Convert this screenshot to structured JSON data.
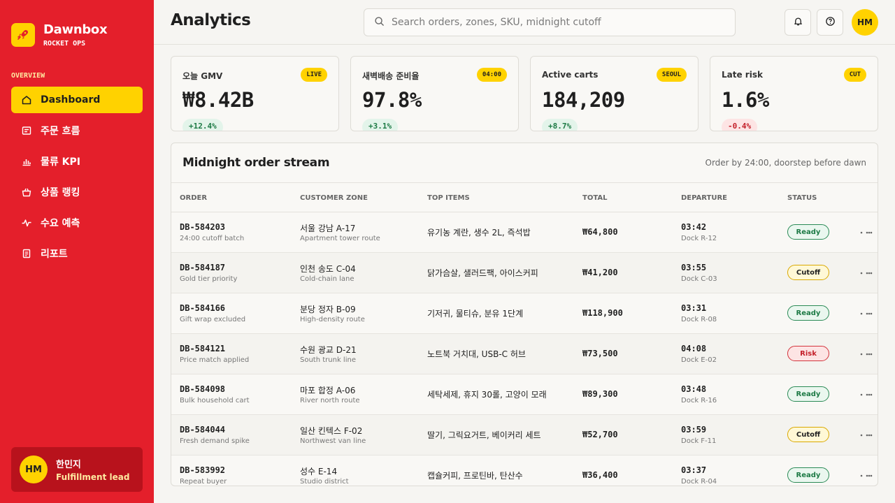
{
  "brand": {
    "name": "Dawnbox",
    "subtitle": "ROCKET OPS",
    "accent": "#e41f2b",
    "highlight": "#ffd200"
  },
  "sidebar": {
    "section_label": "OVERVIEW",
    "items": [
      {
        "label": "Dashboard",
        "icon": "home-icon",
        "active": true
      },
      {
        "label": "주문 흐름",
        "icon": "list-icon"
      },
      {
        "label": "물류 KPI",
        "icon": "bar-chart-icon"
      },
      {
        "label": "상품 랭킹",
        "icon": "basket-icon"
      },
      {
        "label": "수요 예측",
        "icon": "pulse-icon"
      },
      {
        "label": "리포트",
        "icon": "report-icon"
      }
    ],
    "user": {
      "initials": "HM",
      "name": "한민지",
      "role": "Fulfillment lead"
    }
  },
  "header": {
    "title": "Analytics",
    "search_placeholder": "Search orders, zones, SKU, midnight cutoff",
    "avatar_initials": "HM"
  },
  "kpis": [
    {
      "label": "오늘 GMV",
      "badge": "LIVE",
      "value": "₩8.42B",
      "delta": "+12.4%",
      "trend": "up"
    },
    {
      "label": "새벽배송 준비율",
      "badge": "04:00",
      "value": "97.8%",
      "delta": "+3.1%",
      "trend": "up"
    },
    {
      "label": "Active carts",
      "badge": "SEOUL",
      "value": "184,209",
      "delta": "+8.7%",
      "trend": "up"
    },
    {
      "label": "Late risk",
      "badge": "CUT",
      "value": "1.6%",
      "delta": "-0.4%",
      "trend": "down"
    }
  ],
  "table": {
    "title": "Midnight order stream",
    "subtitle": "Order by 24:00, doorstep before dawn",
    "columns": [
      "ORDER",
      "CUSTOMER ZONE",
      "TOP ITEMS",
      "TOTAL",
      "DEPARTURE",
      "STATUS"
    ],
    "rows": [
      {
        "order": "DB-584203",
        "order_note": "24:00 cutoff batch",
        "zone": "서울 강남 A-17",
        "zone_note": "Apartment tower route",
        "items": "유기농 계란, 생수 2L, 즉석밥",
        "total": "₩64,800",
        "departure": "03:42",
        "dock": "Dock R-12",
        "status": "Ready",
        "status_type": "ready"
      },
      {
        "order": "DB-584187",
        "order_note": "Gold tier priority",
        "zone": "인천 송도 C-04",
        "zone_note": "Cold-chain lane",
        "items": "닭가슴살, 샐러드팩, 아이스커피",
        "total": "₩41,200",
        "departure": "03:55",
        "dock": "Dock C-03",
        "status": "Cutoff",
        "status_type": "cutoff"
      },
      {
        "order": "DB-584166",
        "order_note": "Gift wrap excluded",
        "zone": "분당 정자 B-09",
        "zone_note": "High-density route",
        "items": "기저귀, 물티슈, 분유 1단계",
        "total": "₩118,900",
        "departure": "03:31",
        "dock": "Dock R-08",
        "status": "Ready",
        "status_type": "ready"
      },
      {
        "order": "DB-584121",
        "order_note": "Price match applied",
        "zone": "수원 광교 D-21",
        "zone_note": "South trunk line",
        "items": "노트북 거치대, USB-C 허브",
        "total": "₩73,500",
        "departure": "04:08",
        "dock": "Dock E-02",
        "status": "Risk",
        "status_type": "risk"
      },
      {
        "order": "DB-584098",
        "order_note": "Bulk household cart",
        "zone": "마포 합정 A-06",
        "zone_note": "River north route",
        "items": "세탁세제, 휴지 30롤, 고양이 모래",
        "total": "₩89,300",
        "departure": "03:48",
        "dock": "Dock R-16",
        "status": "Ready",
        "status_type": "ready"
      },
      {
        "order": "DB-584044",
        "order_note": "Fresh demand spike",
        "zone": "일산 킨텍스 F-02",
        "zone_note": "Northwest van line",
        "items": "딸기, 그릭요거트, 베이커리 세트",
        "total": "₩52,700",
        "departure": "03:59",
        "dock": "Dock F-11",
        "status": "Cutoff",
        "status_type": "cutoff"
      },
      {
        "order": "DB-583992",
        "order_note": "Repeat buyer",
        "zone": "성수 E-14",
        "zone_note": "Studio district",
        "items": "캡슐커피, 프로틴바, 탄산수",
        "total": "₩36,400",
        "departure": "03:37",
        "dock": "Dock R-04",
        "status": "Ready",
        "status_type": "ready"
      }
    ]
  }
}
